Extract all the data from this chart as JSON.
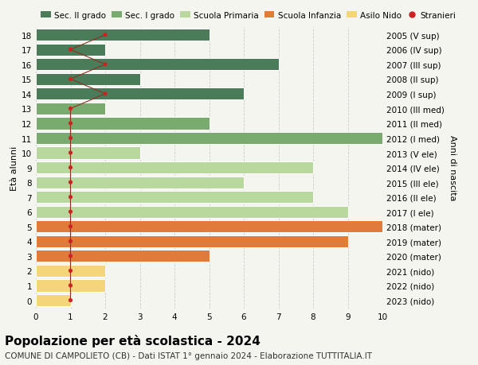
{
  "ages": [
    18,
    17,
    16,
    15,
    14,
    13,
    12,
    11,
    10,
    9,
    8,
    7,
    6,
    5,
    4,
    3,
    2,
    1,
    0
  ],
  "years": [
    "2005 (V sup)",
    "2006 (IV sup)",
    "2007 (III sup)",
    "2008 (II sup)",
    "2009 (I sup)",
    "2010 (III med)",
    "2011 (II med)",
    "2012 (I med)",
    "2013 (V ele)",
    "2014 (IV ele)",
    "2015 (III ele)",
    "2016 (II ele)",
    "2017 (I ele)",
    "2018 (mater)",
    "2019 (mater)",
    "2020 (mater)",
    "2021 (nido)",
    "2022 (nido)",
    "2023 (nido)"
  ],
  "values": [
    5,
    2,
    7,
    3,
    6,
    2,
    5,
    10,
    3,
    8,
    6,
    8,
    9,
    10,
    9,
    5,
    2,
    2,
    1
  ],
  "bar_colors": [
    "#4a7c59",
    "#4a7c59",
    "#4a7c59",
    "#4a7c59",
    "#4a7c59",
    "#7aab6e",
    "#7aab6e",
    "#7aab6e",
    "#b8d89d",
    "#b8d89d",
    "#b8d89d",
    "#b8d89d",
    "#b8d89d",
    "#e07b39",
    "#e07b39",
    "#e07b39",
    "#f5d57a",
    "#f5d57a",
    "#f5d57a"
  ],
  "legend_labels": [
    "Sec. II grado",
    "Sec. I grado",
    "Scuola Primaria",
    "Scuola Infanzia",
    "Asilo Nido",
    "Stranieri"
  ],
  "legend_colors": [
    "#4a7c59",
    "#7aab6e",
    "#b8d89d",
    "#e07b39",
    "#f5d57a",
    "#cc2222"
  ],
  "stranieri_x": [
    2,
    1,
    2,
    1,
    2,
    1,
    1,
    1,
    1,
    1,
    1,
    1,
    1,
    1,
    1,
    1,
    1,
    1,
    1
  ],
  "title": "Popolazione per età scolastica - 2024",
  "subtitle": "COMUNE DI CAMPOLIETO (CB) - Dati ISTAT 1° gennaio 2024 - Elaborazione TUTTITALIA.IT",
  "ylabel": "Età alunni",
  "right_ylabel": "Anni di nascita",
  "xlim": [
    0,
    10
  ],
  "ylim": [
    -0.55,
    18.55
  ],
  "background_color": "#f5f5f0",
  "grid_color": "#cccccc",
  "stranieri_line_color": "#8b3020",
  "stranieri_dot_color": "#cc2222",
  "bar_edge_color": "white",
  "title_fontsize": 11,
  "subtitle_fontsize": 7.5,
  "tick_fontsize": 7.5,
  "legend_fontsize": 7.5,
  "ylabel_fontsize": 8
}
